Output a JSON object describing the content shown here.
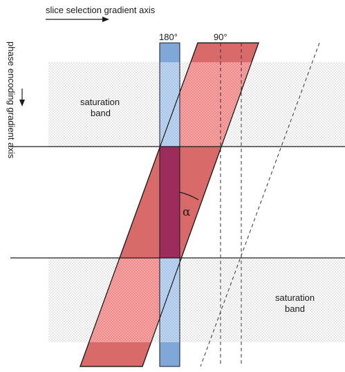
{
  "labels": {
    "slice_axis": "slice selection gradient axis",
    "phase_axis": "phase encoding gradient axis",
    "deg180": "180°",
    "deg90": "90°",
    "sat_top_line1": "saturation",
    "sat_top_line2": "band",
    "sat_bottom_line1": "saturation",
    "sat_bottom_line2": "band",
    "angle": "α"
  },
  "colors": {
    "saturation_dots": "#c8c8c8",
    "band_180": "#7fa8d8",
    "band_90": "#d96a6a",
    "overlap": "#9b2c5c",
    "lines": "#1a1a1a"
  }
}
